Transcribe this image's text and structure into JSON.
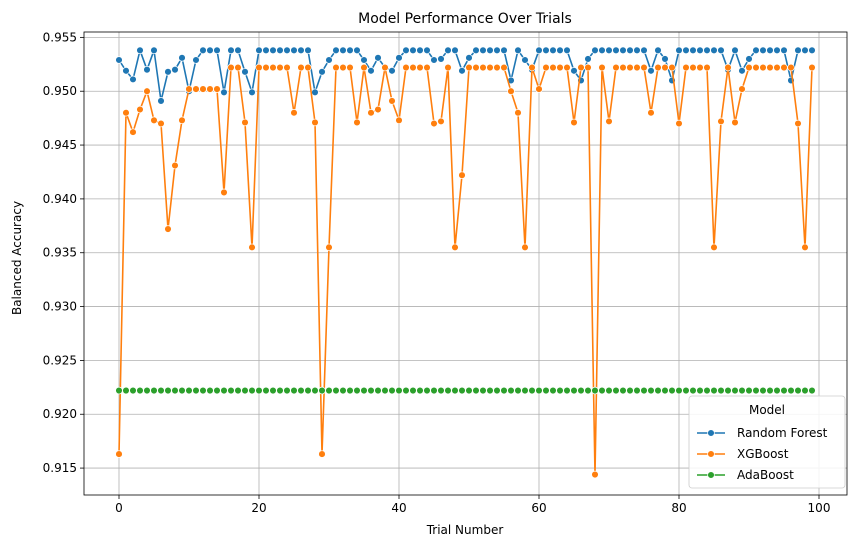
{
  "chart_data": {
    "type": "line",
    "title": "Model Performance Over Trials",
    "xlabel": "Trial Number",
    "ylabel": "Balanced Accuracy",
    "xlim": [
      -5,
      104
    ],
    "ylim": [
      0.9125,
      0.9555
    ],
    "xticks": [
      0,
      20,
      40,
      60,
      80,
      100
    ],
    "yticks": [
      0.915,
      0.92,
      0.925,
      0.93,
      0.935,
      0.94,
      0.945,
      0.95,
      0.955
    ],
    "grid": true,
    "legend": {
      "title": "Model",
      "placement": "lower-right"
    },
    "series": [
      {
        "name": "Random Forest",
        "color": "#1f77b4",
        "values": [
          0.9529,
          0.9519,
          0.9511,
          0.9538,
          0.952,
          0.9538,
          0.9491,
          0.9518,
          0.952,
          0.9531,
          0.95,
          0.9529,
          0.9538,
          0.9538,
          0.9538,
          0.9499,
          0.9538,
          0.9538,
          0.9518,
          0.9499,
          0.9538,
          0.9538,
          0.9538,
          0.9538,
          0.9538,
          0.9538,
          0.9538,
          0.9538,
          0.9499,
          0.9518,
          0.9529,
          0.9538,
          0.9538,
          0.9538,
          0.9538,
          0.9529,
          0.9519,
          0.9531,
          0.9522,
          0.9519,
          0.9531,
          0.9538,
          0.9538,
          0.9538,
          0.9538,
          0.9529,
          0.953,
          0.9538,
          0.9538,
          0.9519,
          0.9531,
          0.9538,
          0.9538,
          0.9538,
          0.9538,
          0.9538,
          0.951,
          0.9538,
          0.9529,
          0.952,
          0.9538,
          0.9538,
          0.9538,
          0.9538,
          0.9538,
          0.9519,
          0.951,
          0.953,
          0.9538,
          0.9538,
          0.9538,
          0.9538,
          0.9538,
          0.9538,
          0.9538,
          0.9538,
          0.9519,
          0.9538,
          0.953,
          0.951,
          0.9538,
          0.9538,
          0.9538,
          0.9538,
          0.9538,
          0.9538,
          0.9538,
          0.952,
          0.9538,
          0.9519,
          0.953,
          0.9538,
          0.9538,
          0.9538,
          0.9538,
          0.9538,
          0.951,
          0.9538,
          0.9538,
          0.9538
        ]
      },
      {
        "name": "XGBoost",
        "color": "#ff7f0e",
        "values": [
          0.9163,
          0.948,
          0.9462,
          0.9483,
          0.95,
          0.9473,
          0.947,
          0.9372,
          0.9431,
          0.9473,
          0.9502,
          0.9502,
          0.9502,
          0.9502,
          0.9502,
          0.9406,
          0.9522,
          0.9522,
          0.9471,
          0.9355,
          0.9522,
          0.9522,
          0.9522,
          0.9522,
          0.9522,
          0.948,
          0.9522,
          0.9522,
          0.9471,
          0.9163,
          0.9355,
          0.9522,
          0.9522,
          0.9522,
          0.9471,
          0.9522,
          0.948,
          0.9483,
          0.9522,
          0.9491,
          0.9473,
          0.9522,
          0.9522,
          0.9522,
          0.9522,
          0.947,
          0.9472,
          0.9522,
          0.9355,
          0.9422,
          0.9522,
          0.9522,
          0.9522,
          0.9522,
          0.9522,
          0.9522,
          0.95,
          0.948,
          0.9355,
          0.9522,
          0.9502,
          0.9522,
          0.9522,
          0.9522,
          0.9522,
          0.9471,
          0.9522,
          0.9522,
          0.9144,
          0.9522,
          0.9472,
          0.9522,
          0.9522,
          0.9522,
          0.9522,
          0.9522,
          0.948,
          0.9522,
          0.9522,
          0.9522,
          0.947,
          0.9522,
          0.9522,
          0.9522,
          0.9522,
          0.9355,
          0.9472,
          0.9522,
          0.9471,
          0.9502,
          0.9522,
          0.9522,
          0.9522,
          0.9522,
          0.9522,
          0.9522,
          0.9522,
          0.947,
          0.9355,
          0.9522
        ]
      },
      {
        "name": "AdaBoost",
        "color": "#2ca02c",
        "values": [
          0.9222,
          0.9222,
          0.9222,
          0.9222,
          0.9222,
          0.9222,
          0.9222,
          0.9222,
          0.9222,
          0.9222,
          0.9222,
          0.9222,
          0.9222,
          0.9222,
          0.9222,
          0.9222,
          0.9222,
          0.9222,
          0.9222,
          0.9222,
          0.9222,
          0.9222,
          0.9222,
          0.9222,
          0.9222,
          0.9222,
          0.9222,
          0.9222,
          0.9222,
          0.9222,
          0.9222,
          0.9222,
          0.9222,
          0.9222,
          0.9222,
          0.9222,
          0.9222,
          0.9222,
          0.9222,
          0.9222,
          0.9222,
          0.9222,
          0.9222,
          0.9222,
          0.9222,
          0.9222,
          0.9222,
          0.9222,
          0.9222,
          0.9222,
          0.9222,
          0.9222,
          0.9222,
          0.9222,
          0.9222,
          0.9222,
          0.9222,
          0.9222,
          0.9222,
          0.9222,
          0.9222,
          0.9222,
          0.9222,
          0.9222,
          0.9222,
          0.9222,
          0.9222,
          0.9222,
          0.9222,
          0.9222,
          0.9222,
          0.9222,
          0.9222,
          0.9222,
          0.9222,
          0.9222,
          0.9222,
          0.9222,
          0.9222,
          0.9222,
          0.9222,
          0.9222,
          0.9222,
          0.9222,
          0.9222,
          0.9222,
          0.9222,
          0.9222,
          0.9222,
          0.9222,
          0.9222,
          0.9222,
          0.9222,
          0.9222,
          0.9222,
          0.9222,
          0.9222,
          0.9222,
          0.9222,
          0.9222
        ]
      }
    ]
  }
}
